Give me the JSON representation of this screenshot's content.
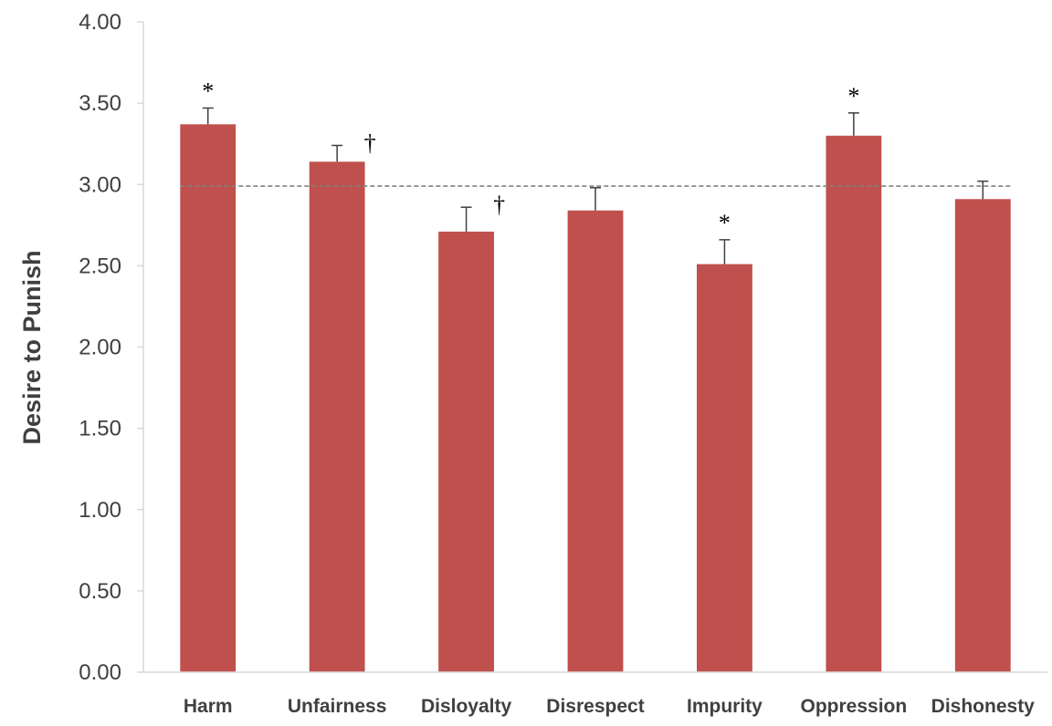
{
  "chart_data": {
    "type": "bar",
    "categories": [
      "Harm",
      "Unfairness",
      "Disloyalty",
      "Disrespect",
      "Impurity",
      "Oppression",
      "Dishonesty"
    ],
    "values": [
      3.37,
      3.14,
      2.71,
      2.84,
      2.51,
      3.3,
      2.91
    ],
    "error_bars": [
      0.1,
      0.1,
      0.15,
      0.14,
      0.15,
      0.14,
      0.11
    ],
    "annotations": [
      "*",
      "†",
      "†",
      "",
      "*",
      "*",
      ""
    ],
    "reference_line": 2.99,
    "title": "",
    "xlabel": "",
    "ylabel": "Desire to Punish",
    "ylim": [
      0,
      4
    ],
    "yticks": [
      "0.00",
      "0.50",
      "1.00",
      "1.50",
      "2.00",
      "2.50",
      "3.00",
      "3.50",
      "4.00"
    ],
    "grid": false,
    "legend": "none",
    "bar_color": "#C0504D",
    "error_bar_color": "#404040",
    "reference_line_color": "#808080",
    "axis_color": "#D9D9D9"
  }
}
